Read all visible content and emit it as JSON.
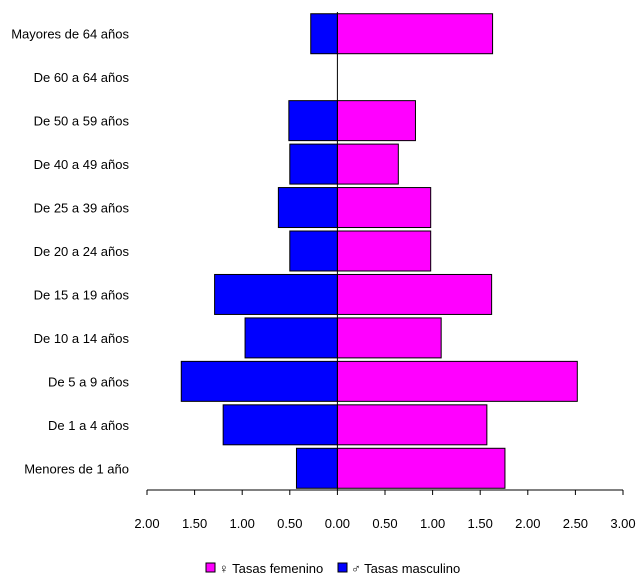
{
  "chart_data": {
    "type": "bar",
    "orientation": "horizontal",
    "layout": "population-pyramid",
    "categories": [
      "Mayores de 64 años",
      "De 60 a 64 años",
      "De 50 a 59 años",
      "De 40 a 49 años",
      "De 25 a 39 años",
      "De 20 a 24 años",
      "De 15 a 19 años",
      "De 10 a 14 años",
      "De 5 a 9 años",
      "De 1 a 4 años",
      "Menores de 1 año"
    ],
    "series": [
      {
        "name": "♀ Tasas femenino",
        "color": "#ff00ff",
        "side": "right",
        "values": [
          1.63,
          0.0,
          0.82,
          0.64,
          0.98,
          0.98,
          1.62,
          1.09,
          2.52,
          1.57,
          1.76
        ]
      },
      {
        "name": "♂ Tasas masculino",
        "color": "#0000ff",
        "side": "left",
        "values": [
          0.28,
          0.0,
          0.51,
          0.5,
          0.62,
          0.5,
          1.29,
          0.97,
          1.64,
          1.2,
          0.43
        ]
      }
    ],
    "xlim": [
      -2.0,
      3.0
    ],
    "xticks": [
      -2,
      -1.5,
      -1,
      -0.5,
      0,
      0.5,
      1,
      1.5,
      2,
      2.5,
      3
    ],
    "xtick_labels": [
      "2.00",
      "1.50",
      "1.00",
      "0.50",
      "0.00",
      "0.50",
      "1.00",
      "1.50",
      "2.00",
      "2.50",
      "3.00"
    ],
    "legend_position": "bottom",
    "grid": false,
    "title": "",
    "xlabel": "",
    "ylabel": ""
  }
}
